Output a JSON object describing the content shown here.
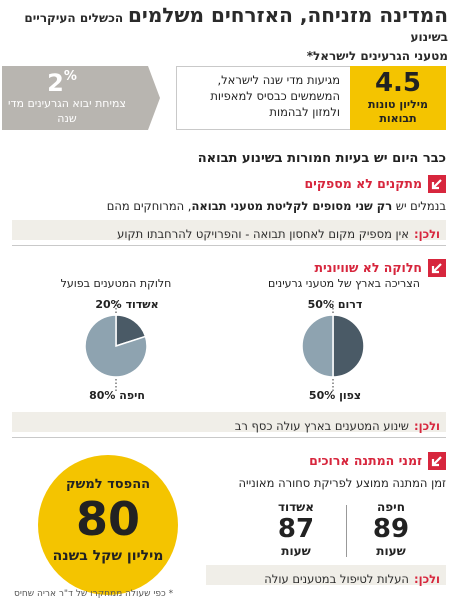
{
  "header": {
    "title_main": "המדינה מזניחה, האזרחים משלמים",
    "title_sub": "הכשלים העיקריים בשינוע",
    "title_line2": "מטעני הגרעינים לישראל*"
  },
  "stats": {
    "imported_share": {
      "value": "2",
      "unit": "%",
      "caption": "צמיחת יבוא הגרעינים מדי שנה"
    },
    "annual_tons": {
      "value": "4.5",
      "caption": "מיליון טונות תבואות",
      "description": "מגיעות מדי שנה לישראל, המשמשים כבסיס למאפיות ולמזון לבהמות"
    }
  },
  "section_head": "כבר היום יש בעיות חמורות בשינוע תבואה",
  "sections": [
    {
      "title": "מתקנים לא מספקים",
      "text_before": "בנמלים יש ",
      "text_bold": "רק שני מסופים לקליטת מטעני תבואה",
      "text_after": ", המרוחקים מהם",
      "ulkhen_label": "ולכן:",
      "ulkhen_text": "אין מספיק מקום לאחסון תבואה - והפרויקט להרחבתו תקוע"
    },
    {
      "title": "חלוקה לא שוויונית",
      "ulkhen_label": "ולכן:",
      "ulkhen_text": "שינוע המטענים בארץ עולה כסף רב"
    },
    {
      "title": "זמני המתנה ארוכים",
      "text": "זמן המתנה ממוצע לפריקת סחורה מאונייה",
      "ulkhen_label": "ולכן:",
      "ulkhen_text": "העלות לטיפול במטענים עולה"
    }
  ],
  "waiting": {
    "haifa": {
      "city": "חיפה",
      "value": "89",
      "unit": "שעות"
    },
    "ashdod": {
      "city": "אשדוד",
      "value": "87",
      "unit": "שעות"
    }
  },
  "loss_circle": {
    "top": "ההפסד למשק",
    "value": "80",
    "bottom": "מיליון שקל בשנה"
  },
  "footnote": "* כפי שעולה ממחקרו של ד\"ר אריה שחיס",
  "colors": {
    "red": "#d7263d",
    "yellow": "#f4c400",
    "grey": "#b8b5b0",
    "pie_dark": "#4a5a66",
    "pie_light": "#8ea3b0"
  },
  "chart_data": [
    {
      "type": "pie",
      "title": "הצריכה בארץ של מטעני גרעינים",
      "slices": [
        {
          "label": "דרום",
          "value": 50
        },
        {
          "label": "צפון",
          "value": 50
        }
      ]
    },
    {
      "type": "pie",
      "title": "חלוקת המטענים בפועל",
      "slices": [
        {
          "label": "אשדוד",
          "value": 20
        },
        {
          "label": "חיפה",
          "value": 80
        }
      ]
    }
  ]
}
